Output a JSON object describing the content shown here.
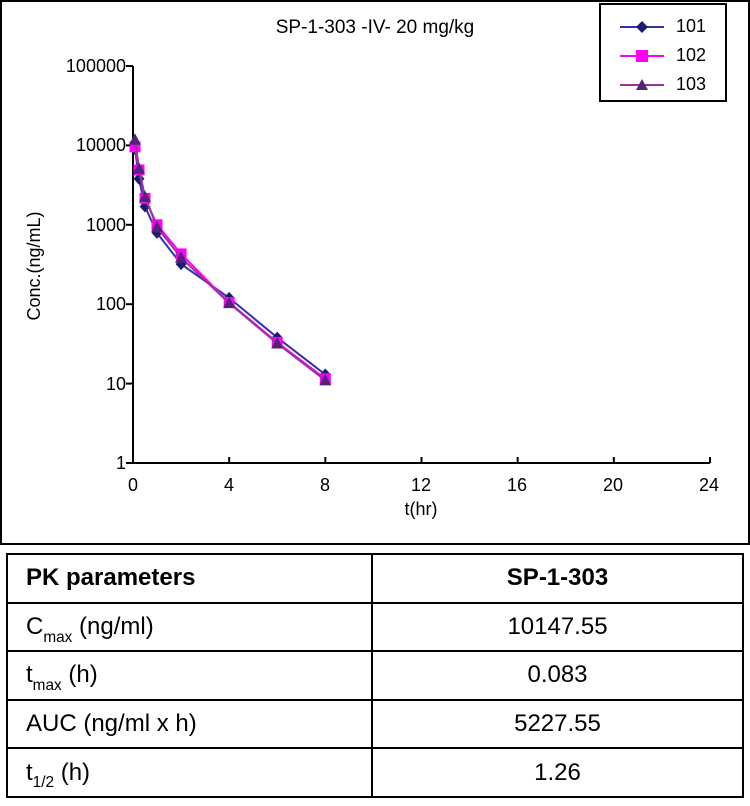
{
  "chart_data": {
    "type": "line",
    "title": "SP-1-303 -IV- 20 mg/kg",
    "xlabel": "t(hr)",
    "ylabel": "Conc.(ng/mL)",
    "y_scale": "log",
    "xlim": [
      0,
      24
    ],
    "ylim": [
      1,
      100000
    ],
    "grid": false,
    "legend_position": "top-right",
    "x": [
      0.083,
      0.25,
      0.5,
      1,
      2,
      4,
      6,
      8
    ],
    "x_ticks": [
      0,
      4,
      8,
      12,
      16,
      20,
      24
    ],
    "y_ticks": [
      1,
      10,
      100,
      1000,
      10000,
      100000
    ],
    "series": [
      {
        "name": "101",
        "marker": "diamond",
        "line_color": "#3333AA",
        "marker_color": "#1C1C72",
        "values": [
          9000,
          3800,
          1700,
          790,
          320,
          120,
          38,
          13
        ]
      },
      {
        "name": "102",
        "marker": "square",
        "line_color": "#FF00FF",
        "marker_color": "#FF00FF",
        "values": [
          9600,
          4900,
          2150,
          1000,
          430,
          105,
          33,
          11.5
        ]
      },
      {
        "name": "103",
        "marker": "triangle",
        "line_color": "#993399",
        "marker_color": "#552277",
        "values": [
          11800,
          5100,
          2250,
          930,
          385,
          103,
          32,
          11
        ]
      }
    ]
  },
  "table": {
    "header": {
      "param": "PK parameters",
      "value": "SP-1-303"
    },
    "rows": [
      {
        "pre": "C",
        "sub": "max",
        "post": " (ng/ml)",
        "value": "10147.55"
      },
      {
        "pre": "t",
        "sub": "max",
        "post": " (h)",
        "value": "0.083"
      },
      {
        "pre": "AUC (ng/ml x h)",
        "sub": "",
        "post": "",
        "value": "5227.55"
      },
      {
        "pre": "t",
        "sub": "1/2",
        "post": " (h)",
        "value": "1.26"
      }
    ]
  }
}
